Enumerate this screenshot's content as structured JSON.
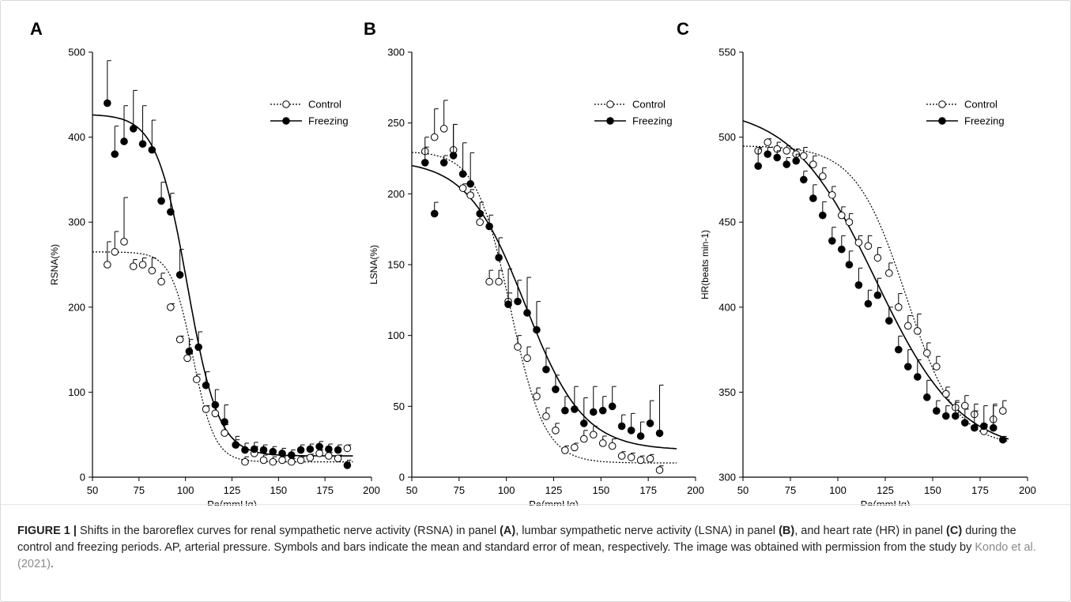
{
  "colors": {
    "axis": "#000000",
    "control_marker_fill": "#ffffff",
    "freezing_marker_fill": "#000000"
  },
  "chart_data": [
    {
      "type": "scatter",
      "panel_label": "A",
      "xlabel": "Pa(mmHg)",
      "ylabel": "RSNA(%)",
      "xlim": [
        50,
        200
      ],
      "ylim": [
        0,
        500
      ],
      "xticks": [
        50,
        75,
        100,
        125,
        150,
        175,
        200
      ],
      "yticks": [
        0,
        100,
        200,
        300,
        400,
        500
      ],
      "legend_position": "top-right",
      "series": [
        {
          "name": "Control",
          "marker": "open-circle",
          "line": "dotted",
          "x": [
            58,
            62,
            67,
            72,
            77,
            82,
            87,
            92,
            97,
            101,
            106,
            111,
            116,
            121,
            127,
            132,
            137,
            142,
            147,
            152,
            157,
            162,
            167,
            172,
            177,
            182,
            187
          ],
          "y": [
            250,
            265,
            277,
            248,
            250,
            243,
            230,
            200,
            162,
            140,
            115,
            80,
            75,
            52,
            38,
            18,
            28,
            20,
            18,
            20,
            18,
            20,
            23,
            28,
            25,
            22,
            34
          ],
          "err": [
            27,
            24,
            52,
            8,
            8,
            15,
            10,
            4,
            4,
            8,
            6,
            4,
            10,
            10,
            6,
            6,
            8,
            6,
            6,
            4,
            4,
            4,
            4,
            4,
            4,
            4,
            4
          ],
          "fit": {
            "top": 265,
            "bottom": 18,
            "x50": 104,
            "k": 0.17
          }
        },
        {
          "name": "Freezing",
          "marker": "filled-circle",
          "line": "solid",
          "x": [
            58,
            62,
            67,
            72,
            77,
            82,
            87,
            92,
            97,
            102,
            107,
            111,
            116,
            121,
            127,
            132,
            137,
            142,
            147,
            152,
            157,
            162,
            167,
            172,
            177,
            182,
            187
          ],
          "y": [
            440,
            380,
            395,
            410,
            392,
            385,
            325,
            312,
            238,
            148,
            153,
            108,
            85,
            65,
            38,
            32,
            33,
            32,
            30,
            28,
            26,
            32,
            33,
            36,
            33,
            32,
            14
          ],
          "err": [
            50,
            33,
            42,
            45,
            45,
            35,
            22,
            22,
            30,
            14,
            18,
            16,
            18,
            20,
            10,
            8,
            8,
            6,
            6,
            6,
            6,
            6,
            6,
            6,
            6,
            6,
            6
          ],
          "fit": {
            "top": 427,
            "bottom": 25,
            "x50": 101,
            "k": 0.12
          }
        }
      ]
    },
    {
      "type": "scatter",
      "panel_label": "B",
      "xlabel": "Pa(mmHg)",
      "ylabel": "LSNA(%)",
      "xlim": [
        50,
        200
      ],
      "ylim": [
        0,
        300
      ],
      "xticks": [
        50,
        75,
        100,
        125,
        150,
        175,
        200
      ],
      "yticks": [
        0,
        50,
        100,
        150,
        200,
        250,
        300
      ],
      "legend_position": "top-right",
      "series": [
        {
          "name": "Control",
          "marker": "open-circle",
          "line": "dotted",
          "x": [
            57,
            62,
            67,
            72,
            77,
            81,
            86,
            91,
            96,
            101,
            106,
            111,
            116,
            121,
            126,
            131,
            136,
            141,
            146,
            151,
            156,
            161,
            166,
            171,
            176,
            181
          ],
          "y": [
            230,
            240,
            246,
            231,
            204,
            199,
            180,
            138,
            138,
            124,
            92,
            84,
            57,
            43,
            33,
            19,
            21,
            27,
            30,
            24,
            22,
            15,
            14,
            12,
            13,
            5
          ],
          "err": [
            3,
            20,
            20,
            18,
            3,
            4,
            7,
            8,
            8,
            6,
            8,
            8,
            6,
            6,
            5,
            3,
            3,
            6,
            6,
            5,
            5,
            3,
            3,
            3,
            3,
            3
          ],
          "fit": {
            "top": 230,
            "bottom": 10,
            "x50": 102,
            "k": 0.11
          }
        },
        {
          "name": "Freezing",
          "marker": "filled-circle",
          "line": "solid",
          "x": [
            57,
            62,
            67,
            72,
            77,
            81,
            86,
            91,
            96,
            101,
            106,
            111,
            116,
            121,
            126,
            131,
            136,
            141,
            146,
            151,
            156,
            161,
            166,
            171,
            176,
            181
          ],
          "y": [
            222,
            186,
            222,
            227,
            214,
            207,
            186,
            177,
            155,
            122,
            124,
            116,
            104,
            76,
            62,
            47,
            48,
            38,
            46,
            47,
            50,
            36,
            33,
            29,
            38,
            31
          ],
          "err": [
            18,
            8,
            5,
            22,
            22,
            22,
            8,
            8,
            14,
            25,
            15,
            25,
            20,
            15,
            10,
            10,
            16,
            18,
            18,
            10,
            14,
            8,
            12,
            10,
            16,
            34
          ],
          "fit": {
            "top": 224,
            "bottom": 19,
            "x50": 110,
            "k": 0.065
          }
        }
      ]
    },
    {
      "type": "scatter",
      "panel_label": "C",
      "xlabel": "Pa(mmHg)",
      "ylabel": "HR(beats min-1)",
      "xlim": [
        50,
        200
      ],
      "ylim": [
        300,
        550
      ],
      "xticks": [
        50,
        75,
        100,
        125,
        150,
        175,
        200
      ],
      "yticks": [
        300,
        350,
        400,
        450,
        500,
        550
      ],
      "legend_position": "top-right",
      "series": [
        {
          "name": "Control",
          "marker": "open-circle",
          "line": "dotted",
          "x": [
            58,
            63,
            68,
            73,
            78,
            82,
            87,
            92,
            97,
            102,
            106,
            111,
            116,
            121,
            127,
            132,
            137,
            142,
            147,
            152,
            157,
            162,
            167,
            172,
            177,
            182,
            187
          ],
          "y": [
            492,
            497,
            493,
            492,
            490,
            489,
            484,
            477,
            466,
            454,
            450,
            438,
            436,
            429,
            420,
            400,
            389,
            386,
            373,
            365,
            349,
            341,
            342,
            337,
            327,
            334,
            339
          ],
          "err": [
            2,
            2,
            4,
            3,
            3,
            5,
            5,
            5,
            5,
            5,
            5,
            4,
            6,
            6,
            6,
            8,
            6,
            10,
            6,
            6,
            4,
            4,
            6,
            6,
            4,
            8,
            6
          ],
          "fit": {
            "top": 495,
            "bottom": 318,
            "x50": 136,
            "k": 0.075
          }
        },
        {
          "name": "Freezing",
          "marker": "filled-circle",
          "line": "solid",
          "x": [
            58,
            63,
            68,
            73,
            78,
            82,
            87,
            92,
            97,
            102,
            106,
            111,
            116,
            121,
            127,
            132,
            137,
            142,
            147,
            152,
            157,
            162,
            167,
            172,
            177,
            182,
            187
          ],
          "y": [
            483,
            490,
            488,
            484,
            486,
            475,
            464,
            454,
            439,
            434,
            425,
            413,
            402,
            407,
            392,
            375,
            365,
            359,
            347,
            339,
            336,
            336,
            332,
            329,
            330,
            329,
            322
          ],
          "err": [
            10,
            4,
            4,
            4,
            4,
            5,
            8,
            8,
            8,
            8,
            8,
            10,
            8,
            10,
            8,
            8,
            10,
            10,
            10,
            6,
            6,
            8,
            8,
            10,
            12,
            14,
            2
          ],
          "fit": {
            "top": 518,
            "bottom": 314,
            "x50": 120,
            "k": 0.045
          }
        }
      ]
    }
  ],
  "caption": {
    "figure_label": "FIGURE 1 |",
    "part1": " Shifts in the baroreflex curves for renal sympathetic nerve activity (RSNA) in panel ",
    "ref_a": "(A)",
    "part2": ", lumbar sympathetic nerve activity (LSNA) in panel ",
    "ref_b": "(B)",
    "part3": ", and heart rate (HR) in panel ",
    "ref_c": "(C)",
    "part4": " during the control and freezing periods. AP, arterial pressure. Symbols and bars indicate the mean and standard error of mean, respectively. The image was obtained with permission from the study by ",
    "citation": "Kondo et al. (2021)",
    "part5": "."
  }
}
